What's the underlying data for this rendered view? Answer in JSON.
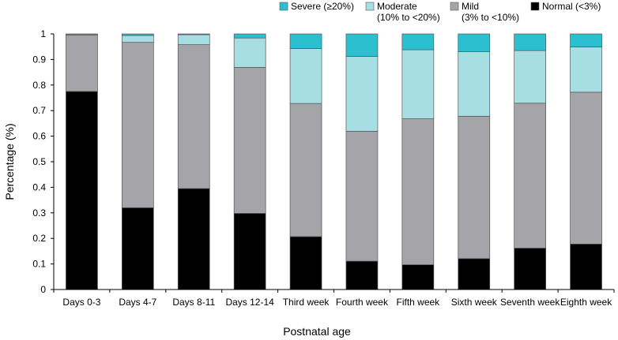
{
  "chart_data": {
    "type": "bar",
    "stacked": true,
    "xlabel": "Postnatal age",
    "ylabel": "Percentage (%)",
    "ylim": [
      0,
      1
    ],
    "yticks": [
      "0",
      "0.1",
      "0.2",
      "0.3",
      "0.4",
      "0.5",
      "0.6",
      "0.7",
      "0.8",
      "0.9",
      "1"
    ],
    "grid": false,
    "legend_position": "top",
    "categories": [
      "Days 0-3",
      "Days 4-7",
      "Days 8-11",
      "Days 12-14",
      "Third week",
      "Fourth week",
      "Fifth week",
      "Sixth week",
      "Seventh week",
      "Eighth week"
    ],
    "series": [
      {
        "name": "Normal (<3%)",
        "name_lines": [
          "Normal (<3%)"
        ],
        "color": "#000000",
        "values": [
          0.775,
          0.32,
          0.395,
          0.298,
          0.207,
          0.111,
          0.097,
          0.121,
          0.162,
          0.178
        ]
      },
      {
        "name": "Mild (3% to <10%)",
        "name_lines": [
          "Mild",
          "(3% to <10%)"
        ],
        "color": "#a4a4a9",
        "values": [
          0.221,
          0.647,
          0.563,
          0.571,
          0.521,
          0.508,
          0.571,
          0.557,
          0.567,
          0.594
        ]
      },
      {
        "name": "Moderate (10% to <20%)",
        "name_lines": [
          "Moderate",
          "(10% to <20%)"
        ],
        "color": "#a6dee3",
        "values": [
          0.003,
          0.027,
          0.039,
          0.115,
          0.215,
          0.293,
          0.27,
          0.253,
          0.206,
          0.177
        ]
      },
      {
        "name": "Severe (≥20%)",
        "name_lines": [
          "Severe (≥20%)"
        ],
        "color": "#2bbfd0",
        "values": [
          0.001,
          0.006,
          0.003,
          0.016,
          0.057,
          0.088,
          0.062,
          0.069,
          0.065,
          0.051
        ]
      }
    ]
  }
}
